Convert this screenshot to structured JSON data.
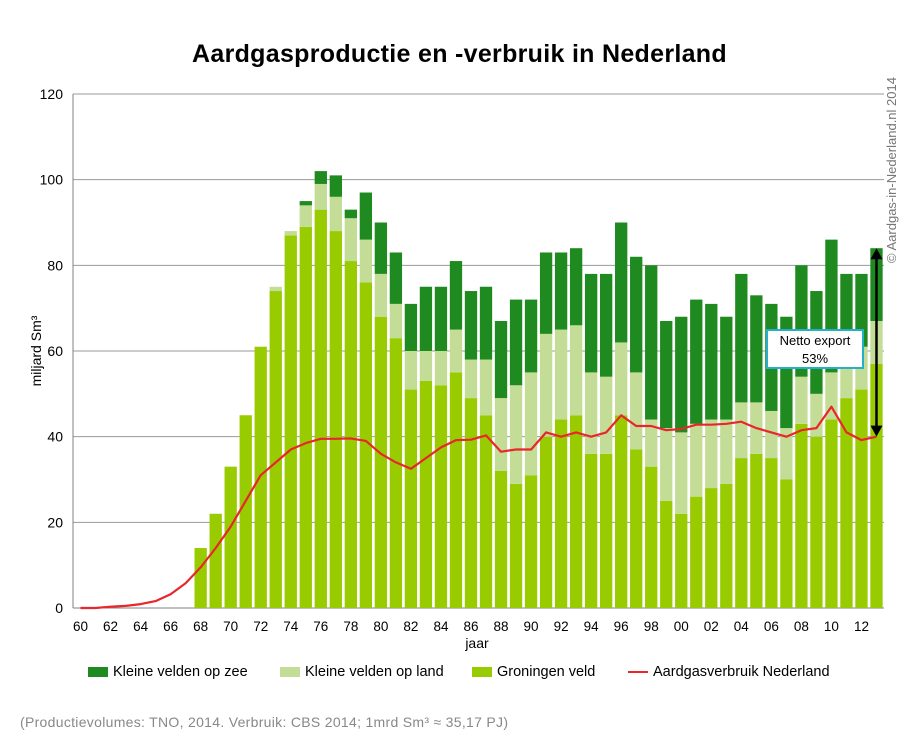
{
  "chart_data": {
    "type": "bar",
    "title": "Aardgasproductie en -verbruik in Nederland",
    "xlabel": "jaar",
    "ylabel": "miljard Sm³",
    "ylim": [
      0,
      120
    ],
    "yticks": [
      "0",
      "20",
      "40",
      "60",
      "80",
      "100",
      "120"
    ],
    "xtick_labels": [
      "60",
      "62",
      "64",
      "66",
      "68",
      "70",
      "72",
      "74",
      "76",
      "78",
      "80",
      "82",
      "84",
      "86",
      "88",
      "90",
      "92",
      "94",
      "96",
      "98",
      "00",
      "02",
      "04",
      "06",
      "08",
      "10",
      "12"
    ],
    "grid": true,
    "stacked": true,
    "legend_position": "bottom",
    "x": [
      1960,
      1961,
      1962,
      1963,
      1964,
      1965,
      1966,
      1967,
      1968,
      1969,
      1970,
      1971,
      1972,
      1973,
      1974,
      1975,
      1976,
      1977,
      1978,
      1979,
      1980,
      1981,
      1982,
      1983,
      1984,
      1985,
      1986,
      1987,
      1988,
      1989,
      1990,
      1991,
      1992,
      1993,
      1994,
      1995,
      1996,
      1997,
      1998,
      1999,
      2000,
      2001,
      2002,
      2003,
      2004,
      2005,
      2006,
      2007,
      2008,
      2009,
      2010,
      2011,
      2012,
      2013
    ],
    "series": [
      {
        "name": "Groningen veld",
        "kind": "bar",
        "color": "#99cc00",
        "values": [
          0,
          0,
          0,
          0,
          0,
          0,
          0,
          0,
          14,
          22,
          33,
          45,
          61,
          74,
          87,
          89,
          93,
          88,
          81,
          76,
          68,
          63,
          51,
          53,
          52,
          55,
          49,
          45,
          32,
          29,
          31,
          40,
          44,
          45,
          36,
          36,
          45,
          37,
          33,
          25,
          22,
          26,
          28,
          29,
          35,
          36,
          35,
          30,
          43,
          40,
          44,
          49,
          51,
          57
        ]
      },
      {
        "name": "Kleine velden op land",
        "kind": "bar",
        "color": "#c4dd96",
        "values": [
          0,
          0,
          0,
          0,
          0,
          0,
          0,
          0,
          0,
          0,
          0,
          0,
          0,
          1,
          1,
          5,
          6,
          8,
          10,
          10,
          10,
          8,
          9,
          7,
          8,
          10,
          9,
          13,
          17,
          23,
          24,
          24,
          21,
          21,
          19,
          18,
          17,
          18,
          11,
          17,
          19,
          17,
          16,
          15,
          13,
          12,
          11,
          12,
          11,
          10,
          11,
          11,
          10,
          10
        ]
      },
      {
        "name": "Kleine velden op zee",
        "kind": "bar",
        "color": "#1f8a1f",
        "values": [
          0,
          0,
          0,
          0,
          0,
          0,
          0,
          0,
          0,
          0,
          0,
          0,
          0,
          0,
          0,
          1,
          3,
          5,
          2,
          11,
          12,
          12,
          11,
          15,
          15,
          16,
          16,
          17,
          18,
          20,
          17,
          19,
          18,
          18,
          23,
          24,
          28,
          27,
          36,
          25,
          27,
          29,
          27,
          24,
          30,
          25,
          25,
          26,
          26,
          24,
          31,
          18,
          17,
          17
        ]
      },
      {
        "name": "Aardgasverbruik Nederland",
        "kind": "line",
        "color": "#e8262b",
        "values": [
          0,
          0,
          0.3,
          0.5,
          0.9,
          1.6,
          3.2,
          5.8,
          9.5,
          14,
          19,
          25,
          31,
          34,
          37,
          38.5,
          39.5,
          39.5,
          39.6,
          39,
          36,
          34,
          32.5,
          35,
          37.5,
          39.2,
          39.3,
          40.3,
          36.5,
          37,
          37,
          41,
          40,
          41,
          40,
          41,
          45,
          42.5,
          42.5,
          41.5,
          41.8,
          42.8,
          42.8,
          43,
          43.5,
          42,
          41,
          40,
          41.5,
          42,
          47,
          41,
          39.2,
          40
        ]
      }
    ],
    "annotations": [
      {
        "text_line1": "Netto export",
        "text_line2": "53%"
      }
    ]
  },
  "legend": {
    "items": [
      {
        "label": "Kleine velden op zee",
        "color": "#1f8a1f",
        "kind": "box"
      },
      {
        "label": "Kleine velden op land",
        "color": "#c4dd96",
        "kind": "box"
      },
      {
        "label": "Groningen veld",
        "color": "#99cc00",
        "kind": "box"
      },
      {
        "label": "Aardgasverbruik Nederland",
        "color": "#e8262b",
        "kind": "line"
      }
    ]
  },
  "copyright": "© Aardgas-in-Nederland.nl 2014",
  "source_note": "(Productievolumes:  TNO, 2014.  Verbruik:  CBS 2014;  1mrd  Sm³  ≈ 35,17 PJ)"
}
